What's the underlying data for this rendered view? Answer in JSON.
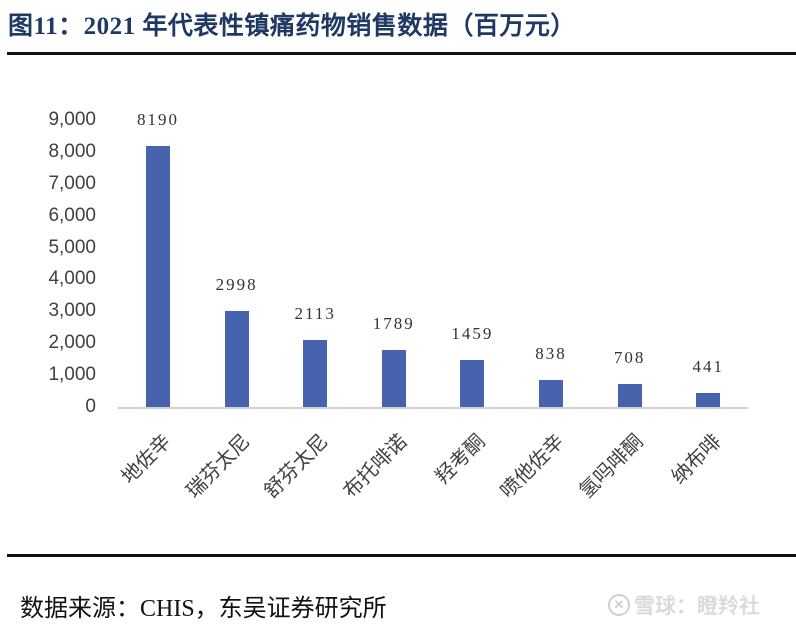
{
  "header": {
    "title": "图11：2021 年代表性镇痛药物销售数据（百万元）"
  },
  "chart_data": {
    "type": "bar",
    "title": "2021 年代表性镇痛药物销售数据（百万元）",
    "figure_label": "图11",
    "categories": [
      "地佐辛",
      "瑞芬太尼",
      "舒芬太尼",
      "布托啡诺",
      "羟考酮",
      "喷他佐辛",
      "氢吗啡酮",
      "纳布啡"
    ],
    "values": [
      8190,
      2998,
      2113,
      1789,
      1459,
      838,
      708,
      441
    ],
    "data_labels": [
      "8190",
      "2998",
      "2113",
      "1789",
      "1459",
      "838",
      "708",
      "441"
    ],
    "xlabel": "",
    "ylabel": "",
    "ylim": [
      0,
      9000
    ],
    "yticks": [
      "0",
      "1,000",
      "2,000",
      "3,000",
      "4,000",
      "5,000",
      "6,000",
      "7,000",
      "8,000",
      "9,000"
    ],
    "ytick_values": [
      0,
      1000,
      2000,
      3000,
      4000,
      5000,
      6000,
      7000,
      8000,
      9000
    ],
    "bar_color": "#4863ad",
    "grid": false,
    "legend": null,
    "unit": "百万元"
  },
  "footer": {
    "source": "数据来源：CHIS，东吴证券研究所",
    "watermark_icon": "xueqiu-logo-icon",
    "watermark_text": "雪球：瞪羚社"
  }
}
